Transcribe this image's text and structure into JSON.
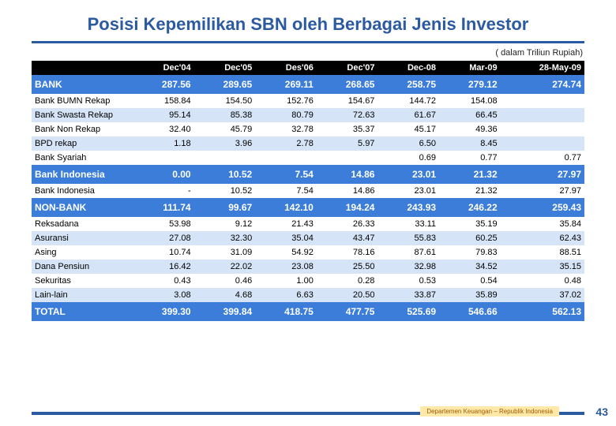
{
  "title": "Posisi Kepemilikan SBN oleh Berbagai Jenis Investor",
  "unit_note": "( dalam Triliun Rupiah)",
  "columns": [
    "",
    "Dec'04",
    "Dec'05",
    "Des'06",
    "Dec'07",
    "Dec-08",
    "Mar-09",
    "28-May-09"
  ],
  "sections": [
    {
      "header": [
        "BANK",
        "287.56",
        "289.65",
        "269.11",
        "268.65",
        "258.75",
        "279.12",
        "274.74"
      ],
      "rows": [
        [
          "Bank BUMN Rekap",
          "158.84",
          "154.50",
          "152.76",
          "154.67",
          "144.72",
          "154.08",
          ""
        ],
        [
          "Bank Swasta Rekap",
          "95.14",
          "85.38",
          "80.79",
          "72.63",
          "61.67",
          "66.45",
          ""
        ],
        [
          "Bank Non Rekap",
          "32.40",
          "45.79",
          "32.78",
          "35.37",
          "45.17",
          "49.36",
          ""
        ],
        [
          "BPD rekap",
          "1.18",
          "3.96",
          "2.78",
          "5.97",
          "6.50",
          "8.45",
          ""
        ],
        [
          "Bank Syariah",
          "",
          "",
          "",
          "",
          "0.69",
          "0.77",
          "0.77"
        ]
      ]
    },
    {
      "header": [
        "Bank Indonesia",
        "0.00",
        "10.52",
        "7.54",
        "14.86",
        "23.01",
        "21.32",
        "27.97"
      ],
      "rows": [
        [
          "Bank Indonesia",
          "-",
          "10.52",
          "7.54",
          "14.86",
          "23.01",
          "21.32",
          "27.97"
        ]
      ]
    },
    {
      "header": [
        "NON-BANK",
        "111.74",
        "99.67",
        "142.10",
        "194.24",
        "243.93",
        "246.22",
        "259.43"
      ],
      "rows": [
        [
          "Reksadana",
          "53.98",
          "9.12",
          "21.43",
          "26.33",
          "33.11",
          "35.19",
          "35.84"
        ],
        [
          "Asuransi",
          "27.08",
          "32.30",
          "35.04",
          "43.47",
          "55.83",
          "60.25",
          "62.43"
        ],
        [
          "Asing",
          "10.74",
          "31.09",
          "54.92",
          "78.16",
          "87.61",
          "79.83",
          "88.51"
        ],
        [
          "Dana Pensiun",
          "16.42",
          "22.02",
          "23.08",
          "25.50",
          "32.98",
          "34.52",
          "35.15"
        ],
        [
          "Sekuritas",
          "0.43",
          "0.46",
          "1.00",
          "0.28",
          "0.53",
          "0.54",
          "0.48"
        ],
        [
          "Lain-lain",
          "3.08",
          "4.68",
          "6.63",
          "20.50",
          "33.87",
          "35.89",
          "37.02"
        ]
      ]
    }
  ],
  "total": [
    "TOTAL",
    "399.30",
    "399.84",
    "418.75",
    "477.75",
    "525.69",
    "546.66",
    "562.13"
  ],
  "footer_label": "Departemen Keuangan – Republik Indonesia",
  "page_number": "43",
  "colors": {
    "accent": "#2c5aa0",
    "section_bg": "#3b7dd8",
    "alt_row": "#d6e4f7",
    "header_bg": "#000000",
    "footer_box": "#ffe9a8"
  }
}
